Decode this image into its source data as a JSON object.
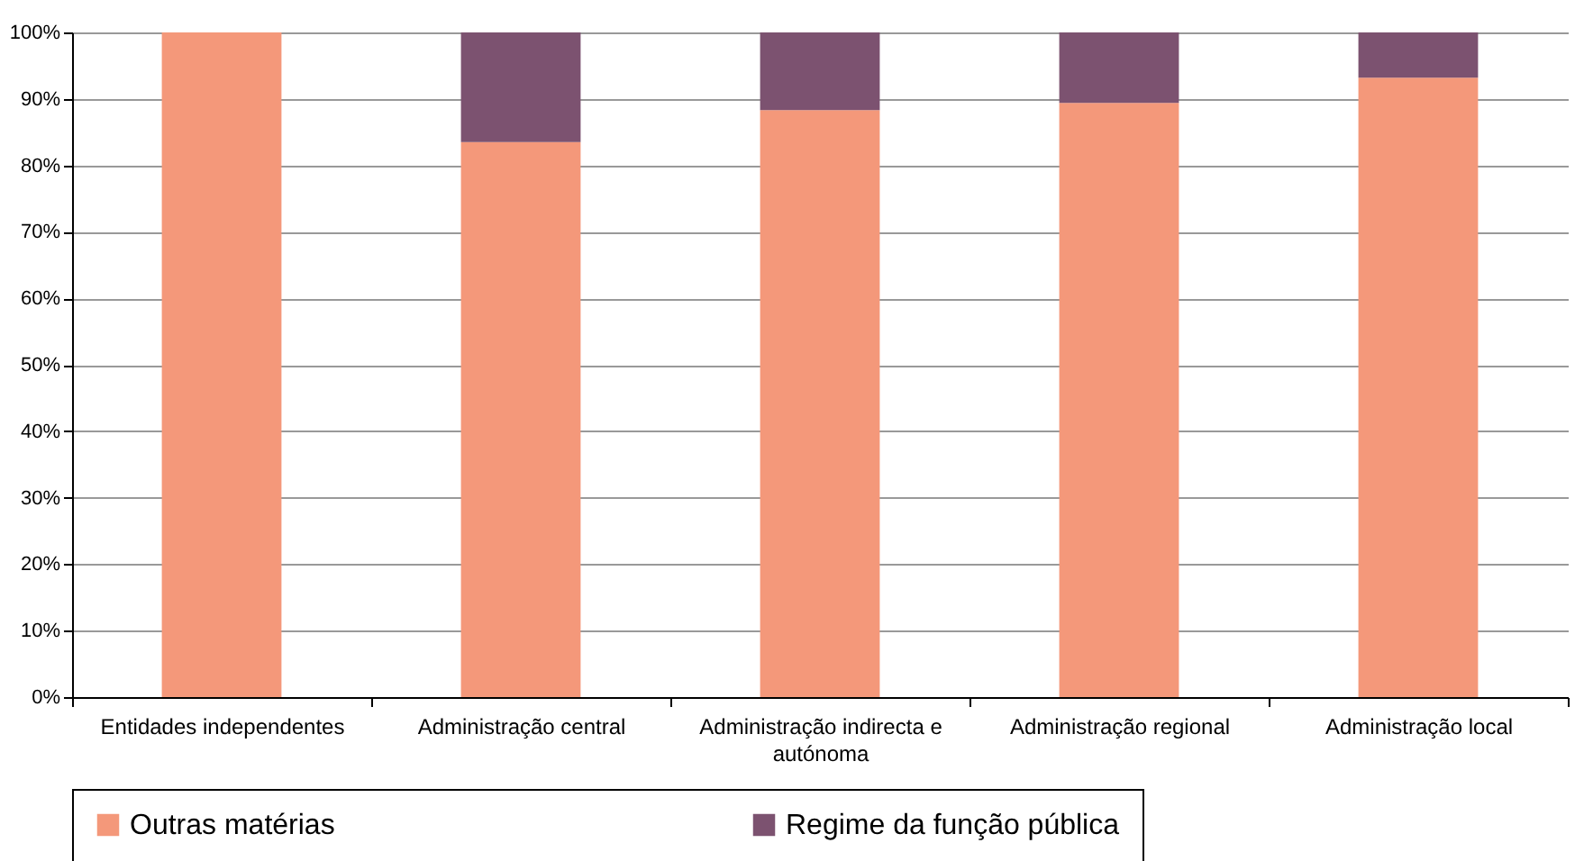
{
  "chart_data": {
    "type": "bar",
    "stacked": true,
    "categories": [
      "Entidades independentes",
      "Administração central",
      "Administração indirecta e autónoma",
      "Administração regional",
      "Administração local"
    ],
    "series": [
      {
        "name": "Outras matérias",
        "color": "#f4987a",
        "values": [
          100,
          83.5,
          88.3,
          89.4,
          93.2
        ]
      },
      {
        "name": "Regime da função pública",
        "color": "#7c5270",
        "values": [
          0,
          16.5,
          11.7,
          10.6,
          6.8
        ]
      }
    ],
    "ylim": [
      0,
      100
    ],
    "yticks": [
      {
        "value": 0,
        "label": "0%"
      },
      {
        "value": 10,
        "label": "10%"
      },
      {
        "value": 20,
        "label": "20%"
      },
      {
        "value": 30,
        "label": "30%"
      },
      {
        "value": 40,
        "label": "40%"
      },
      {
        "value": 50,
        "label": "50%"
      },
      {
        "value": 60,
        "label": "60%"
      },
      {
        "value": 70,
        "label": "70%"
      },
      {
        "value": 80,
        "label": "80%"
      },
      {
        "value": 90,
        "label": "90%"
      },
      {
        "value": 100,
        "label": "100%"
      }
    ],
    "grid": "y",
    "legend": "bottom"
  }
}
